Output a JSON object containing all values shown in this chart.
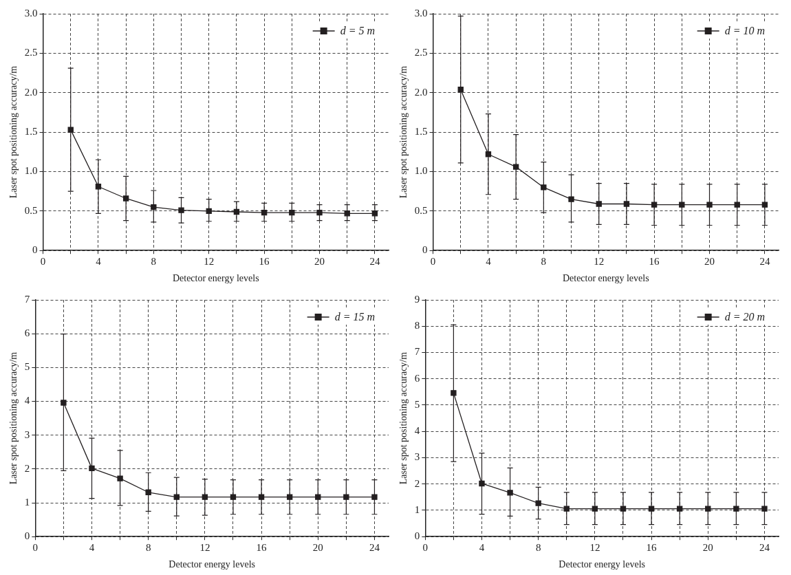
{
  "chart_data": [
    {
      "type": "line",
      "xlabel": "Detector energy levels",
      "ylabel": "Laser spot positioning accuracy/m",
      "x": [
        2,
        4,
        6,
        8,
        10,
        12,
        14,
        16,
        18,
        20,
        22,
        24
      ],
      "xlim": [
        0,
        25
      ],
      "ylim": [
        0,
        3
      ],
      "xticks": [
        0,
        {
          "value": 2,
          "label": null
        },
        4,
        {
          "value": 6,
          "label": null
        },
        8,
        {
          "value": 10,
          "label": null
        },
        12,
        {
          "value": 14,
          "label": null
        },
        16,
        {
          "value": 18,
          "label": null
        },
        20,
        {
          "value": 22,
          "label": null
        },
        24
      ],
      "yticks": [
        0,
        0.5,
        {
          "value": 1,
          "label": "1.0"
        },
        1.5,
        {
          "value": 2,
          "label": "2.0"
        },
        2.5,
        {
          "value": 3,
          "label": "3.0"
        }
      ],
      "grid": true,
      "legend": "top right",
      "marker": "square",
      "line_style": "solid",
      "series": [
        {
          "name": "d = 5 m",
          "color": "#231f20",
          "values": [
            1.53,
            0.81,
            0.66,
            0.55,
            0.51,
            0.5,
            0.49,
            0.48,
            0.48,
            0.48,
            0.47,
            0.47
          ],
          "errors": [
            [
              0.75,
              2.31
            ],
            [
              0.47,
              1.15
            ],
            [
              0.38,
              0.94
            ],
            [
              0.36,
              0.76
            ],
            [
              0.35,
              0.67
            ],
            [
              0.37,
              0.65
            ],
            [
              0.37,
              0.62
            ],
            [
              0.37,
              0.6
            ],
            [
              0.37,
              0.6
            ],
            [
              0.38,
              0.58
            ],
            [
              0.38,
              0.58
            ],
            [
              0.38,
              0.58
            ]
          ]
        }
      ]
    },
    {
      "type": "line",
      "xlabel": "Detector energy levels",
      "ylabel": "Laser spot positioning accuracy/m",
      "x": [
        2,
        4,
        6,
        8,
        10,
        12,
        14,
        16,
        18,
        20,
        22,
        24
      ],
      "xlim": [
        0,
        25
      ],
      "ylim": [
        0,
        3
      ],
      "xticks": [
        0,
        {
          "value": 2,
          "label": null
        },
        4,
        {
          "value": 6,
          "label": null
        },
        8,
        {
          "value": 10,
          "label": null
        },
        12,
        {
          "value": 14,
          "label": null
        },
        16,
        {
          "value": 18,
          "label": null
        },
        20,
        {
          "value": 22,
          "label": null
        },
        24
      ],
      "yticks": [
        0,
        0.5,
        {
          "value": 1,
          "label": "1.0"
        },
        1.5,
        {
          "value": 2,
          "label": "2.0"
        },
        2.5,
        {
          "value": 3,
          "label": "3.0"
        }
      ],
      "grid": true,
      "legend": "top right",
      "marker": "square",
      "line_style": "solid",
      "series": [
        {
          "name": "d = 10 m",
          "color": "#231f20",
          "values": [
            2.04,
            1.22,
            1.06,
            0.8,
            0.65,
            0.59,
            0.59,
            0.58,
            0.58,
            0.58,
            0.58,
            0.58
          ],
          "errors": [
            [
              1.11,
              2.97
            ],
            [
              0.71,
              1.73
            ],
            [
              0.65,
              1.47
            ],
            [
              0.48,
              1.12
            ],
            [
              0.36,
              0.96
            ],
            [
              0.33,
              0.85
            ],
            [
              0.33,
              0.85
            ],
            [
              0.32,
              0.84
            ],
            [
              0.32,
              0.84
            ],
            [
              0.32,
              0.84
            ],
            [
              0.32,
              0.84
            ],
            [
              0.32,
              0.84
            ]
          ]
        }
      ]
    },
    {
      "type": "line",
      "xlabel": "Detector energy levels",
      "ylabel": "Laser spot positioning accuracy/m",
      "x": [
        2,
        4,
        6,
        8,
        10,
        12,
        14,
        16,
        18,
        20,
        22,
        24
      ],
      "xlim": [
        0,
        25
      ],
      "ylim": [
        0,
        7
      ],
      "xticks": [
        0,
        {
          "value": 2,
          "label": null
        },
        4,
        {
          "value": 6,
          "label": null
        },
        8,
        {
          "value": 10,
          "label": null
        },
        12,
        {
          "value": 14,
          "label": null
        },
        16,
        {
          "value": 18,
          "label": null
        },
        20,
        {
          "value": 22,
          "label": null
        },
        24
      ],
      "yticks": [
        0,
        1,
        2,
        3,
        4,
        5,
        6,
        7
      ],
      "grid": true,
      "legend": "top right",
      "marker": "square",
      "line_style": "solid",
      "series": [
        {
          "name": "d = 15 m",
          "color": "#231f20",
          "values": [
            3.96,
            2.02,
            1.72,
            1.31,
            1.17,
            1.17,
            1.17,
            1.17,
            1.17,
            1.17,
            1.17,
            1.17
          ],
          "errors": [
            [
              1.95,
              5.99
            ],
            [
              1.13,
              2.91
            ],
            [
              0.92,
              2.55
            ],
            [
              0.75,
              1.89
            ],
            [
              0.61,
              1.75
            ],
            [
              0.63,
              1.7
            ],
            [
              0.66,
              1.68
            ],
            [
              0.66,
              1.68
            ],
            [
              0.66,
              1.68
            ],
            [
              0.66,
              1.68
            ],
            [
              0.66,
              1.68
            ],
            [
              0.66,
              1.68
            ]
          ]
        }
      ]
    },
    {
      "type": "line",
      "xlabel": "Detector energy levels",
      "ylabel": "Laser spot positioning accuracy/m",
      "x": [
        2,
        4,
        6,
        8,
        10,
        12,
        14,
        16,
        18,
        20,
        22,
        24
      ],
      "xlim": [
        0,
        25
      ],
      "ylim": [
        0,
        9
      ],
      "xticks": [
        0,
        {
          "value": 2,
          "label": null
        },
        4,
        {
          "value": 6,
          "label": null
        },
        8,
        {
          "value": 10,
          "label": null
        },
        12,
        {
          "value": 14,
          "label": null
        },
        16,
        {
          "value": 18,
          "label": null
        },
        20,
        {
          "value": 22,
          "label": null
        },
        24
      ],
      "yticks": [
        0,
        1,
        2,
        3,
        4,
        5,
        6,
        7,
        8,
        9
      ],
      "grid": true,
      "legend": "top right",
      "marker": "square",
      "line_style": "solid",
      "series": [
        {
          "name": "d = 20 m",
          "color": "#231f20",
          "values": [
            5.46,
            2.02,
            1.67,
            1.27,
            1.06,
            1.06,
            1.06,
            1.06,
            1.06,
            1.06,
            1.06,
            1.06
          ],
          "errors": [
            [
              2.85,
              8.05
            ],
            [
              0.85,
              3.17
            ],
            [
              0.78,
              2.61
            ],
            [
              0.67,
              1.88
            ],
            [
              0.46,
              1.68
            ],
            [
              0.46,
              1.68
            ],
            [
              0.46,
              1.68
            ],
            [
              0.46,
              1.68
            ],
            [
              0.46,
              1.68
            ],
            [
              0.46,
              1.68
            ],
            [
              0.46,
              1.68
            ],
            [
              0.46,
              1.68
            ]
          ]
        }
      ]
    }
  ]
}
